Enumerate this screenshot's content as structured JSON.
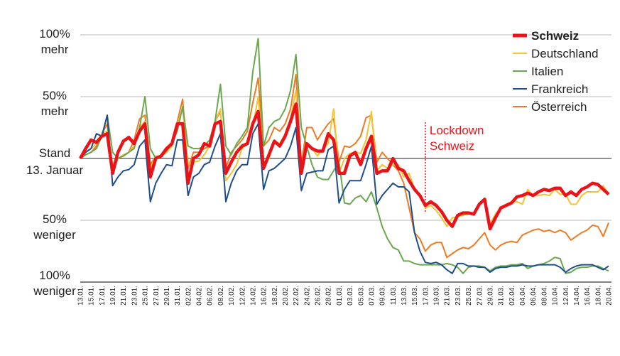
{
  "chart_data": {
    "type": "line",
    "title": "",
    "xlabel": "",
    "ylabel": "",
    "ylim": [
      -100,
      100
    ],
    "grid": true,
    "legend_position": "top-right",
    "y_labels": [
      {
        "value": 100,
        "line1": "100%",
        "line2": "mehr"
      },
      {
        "value": 50,
        "line1": "50%",
        "line2": "mehr"
      },
      {
        "value": 0,
        "line1": "Stand",
        "line2": "13. Januar"
      },
      {
        "value": -50,
        "line1": "50%",
        "line2": "weniger"
      },
      {
        "value": -100,
        "line1": "100%",
        "line2": "weniger"
      }
    ],
    "x_tick_labels": [
      "13.01.",
      "15.01.",
      "17.01.",
      "19.01.",
      "21.01.",
      "23.01.",
      "25.01.",
      "27.01.",
      "29.01.",
      "31.01.",
      "02.02.",
      "04.02.",
      "06.02.",
      "08.02.",
      "10.02.",
      "12.02.",
      "14.02.",
      "16.02.",
      "18.02.",
      "20.02.",
      "22.02.",
      "24.02.",
      "26.02.",
      "28.02.",
      "01.03.",
      "03.03.",
      "05.03.",
      "07.03.",
      "09.03.",
      "11.03.",
      "13.03.",
      "15.03.",
      "17.03.",
      "19.03.",
      "21.03.",
      "23.03.",
      "25.03.",
      "27.03.",
      "29.03.",
      "31.03.",
      "02.04.",
      "04.04.",
      "06.04.",
      "08.04.",
      "10.04.",
      "12.04.",
      "14.04.",
      "16.04.",
      "18.04.",
      "20.04."
    ],
    "x_count": 99,
    "annotation": {
      "line1": "Lockdown",
      "line2": "Schweiz",
      "x_index": 64
    },
    "series": [
      {
        "name": "Schweiz",
        "color": "#e8141a",
        "bold": true,
        "values": [
          0,
          8,
          15,
          13,
          18,
          20,
          -12,
          5,
          14,
          17,
          12,
          22,
          28,
          -15,
          0,
          2,
          8,
          12,
          28,
          28,
          -20,
          0,
          3,
          12,
          10,
          28,
          30,
          -12,
          -3,
          5,
          10,
          12,
          28,
          38,
          -8,
          3,
          14,
          10,
          18,
          30,
          44,
          -12,
          12,
          8,
          6,
          6,
          20,
          15,
          -12,
          -12,
          2,
          5,
          -5,
          8,
          18,
          -12,
          -10,
          -10,
          0,
          -8,
          -10,
          -18,
          -25,
          -30,
          -38,
          -35,
          -38,
          -43,
          -50,
          -55,
          -46,
          -44,
          -44,
          -45,
          -37,
          -33,
          -57,
          -48,
          -40,
          -38,
          -36,
          -31,
          -30,
          -28,
          -30,
          -27,
          -25,
          -26,
          -24,
          -24,
          -30,
          -27,
          -30,
          -25,
          -23,
          -20,
          -21,
          -25,
          -29
        ]
      },
      {
        "name": "Deutschland",
        "color": "#f2c335",
        "values": [
          0,
          5,
          8,
          12,
          20,
          22,
          -5,
          0,
          3,
          5,
          10,
          25,
          30,
          -8,
          2,
          2,
          5,
          10,
          28,
          40,
          -5,
          -3,
          -2,
          3,
          10,
          30,
          40,
          -18,
          -12,
          -5,
          8,
          12,
          25,
          50,
          -5,
          0,
          14,
          12,
          20,
          32,
          55,
          -12,
          10,
          8,
          2,
          8,
          12,
          40,
          -12,
          0,
          4,
          5,
          4,
          15,
          38,
          -10,
          -5,
          -8,
          -5,
          -5,
          -15,
          -12,
          -25,
          -30,
          -40,
          -38,
          -42,
          -48,
          -55,
          -48,
          -47,
          -46,
          -45,
          -44,
          -37,
          -33,
          -53,
          -45,
          -40,
          -37,
          -35,
          -35,
          -37,
          -25,
          -30,
          -30,
          -29,
          -30,
          -25,
          -29,
          -29,
          -37,
          -37,
          -30,
          -27,
          -27,
          -27,
          -22,
          -29
        ]
      },
      {
        "name": "Italien",
        "color": "#6aa84f",
        "values": [
          0,
          3,
          5,
          8,
          18,
          35,
          5,
          0,
          2,
          5,
          8,
          25,
          50,
          8,
          0,
          3,
          6,
          12,
          22,
          42,
          10,
          8,
          8,
          10,
          15,
          30,
          60,
          10,
          3,
          12,
          18,
          25,
          70,
          97,
          10,
          25,
          30,
          32,
          40,
          55,
          84,
          25,
          10,
          -5,
          -15,
          -17,
          -17,
          -10,
          -3,
          -36,
          -37,
          -32,
          -30,
          -35,
          -27,
          -40,
          -55,
          -65,
          -72,
          -74,
          -83,
          -83,
          -85,
          -86,
          -86,
          -86,
          -86,
          -86,
          -85,
          -86,
          -88,
          -93,
          -88,
          -87,
          -87,
          -88,
          -91,
          -88,
          -87,
          -87,
          -86,
          -86,
          -85,
          -89,
          -87,
          -86,
          -85,
          -83,
          -80,
          -81,
          -93,
          -92,
          -89,
          -88,
          -88,
          -87,
          -87,
          -89,
          -91
        ]
      },
      {
        "name": "Frankreich",
        "color": "#1f4e8c",
        "values": [
          0,
          5,
          8,
          20,
          18,
          35,
          -22,
          -15,
          -10,
          -9,
          -5,
          10,
          15,
          -35,
          -20,
          -12,
          -5,
          -6,
          15,
          15,
          -30,
          -15,
          -12,
          -5,
          -3,
          10,
          20,
          -35,
          -20,
          -10,
          -5,
          -5,
          20,
          28,
          -25,
          -10,
          -8,
          -4,
          0,
          10,
          25,
          -26,
          -12,
          -11,
          -10,
          -10,
          7,
          10,
          -36,
          -25,
          -18,
          -18,
          -18,
          -5,
          10,
          -37,
          -30,
          -25,
          -20,
          -23,
          -23,
          -27,
          -60,
          -75,
          -84,
          -85,
          -84,
          -86,
          -90,
          -93,
          -85,
          -85,
          -87,
          -87,
          -88,
          -88,
          -92,
          -89,
          -88,
          -88,
          -87,
          -87,
          -86,
          -87,
          -87,
          -86,
          -86,
          -86,
          -86,
          -88,
          -92,
          -89,
          -87,
          -86,
          -86,
          -86,
          -88,
          -90,
          -87
        ]
      },
      {
        "name": "Österreich",
        "color": "#f07a22",
        "values": [
          0,
          3,
          5,
          10,
          20,
          28,
          -10,
          0,
          2,
          5,
          15,
          32,
          35,
          -5,
          2,
          2,
          5,
          12,
          30,
          48,
          -8,
          5,
          5,
          8,
          10,
          30,
          38,
          -8,
          5,
          10,
          15,
          22,
          45,
          65,
          10,
          15,
          25,
          22,
          28,
          40,
          68,
          -5,
          25,
          25,
          15,
          22,
          28,
          32,
          -3,
          10,
          9,
          12,
          18,
          33,
          35,
          -3,
          5,
          0,
          -5,
          -10,
          -20,
          -40,
          -60,
          -65,
          -75,
          -70,
          -68,
          -68,
          -80,
          -77,
          -74,
          -72,
          -73,
          -70,
          -65,
          -60,
          -70,
          -74,
          -70,
          -68,
          -67,
          -68,
          -62,
          -60,
          -58,
          -57,
          -59,
          -58,
          -60,
          -58,
          -60,
          -66,
          -63,
          -60,
          -58,
          -54,
          -55,
          -63,
          -52
        ]
      }
    ]
  }
}
